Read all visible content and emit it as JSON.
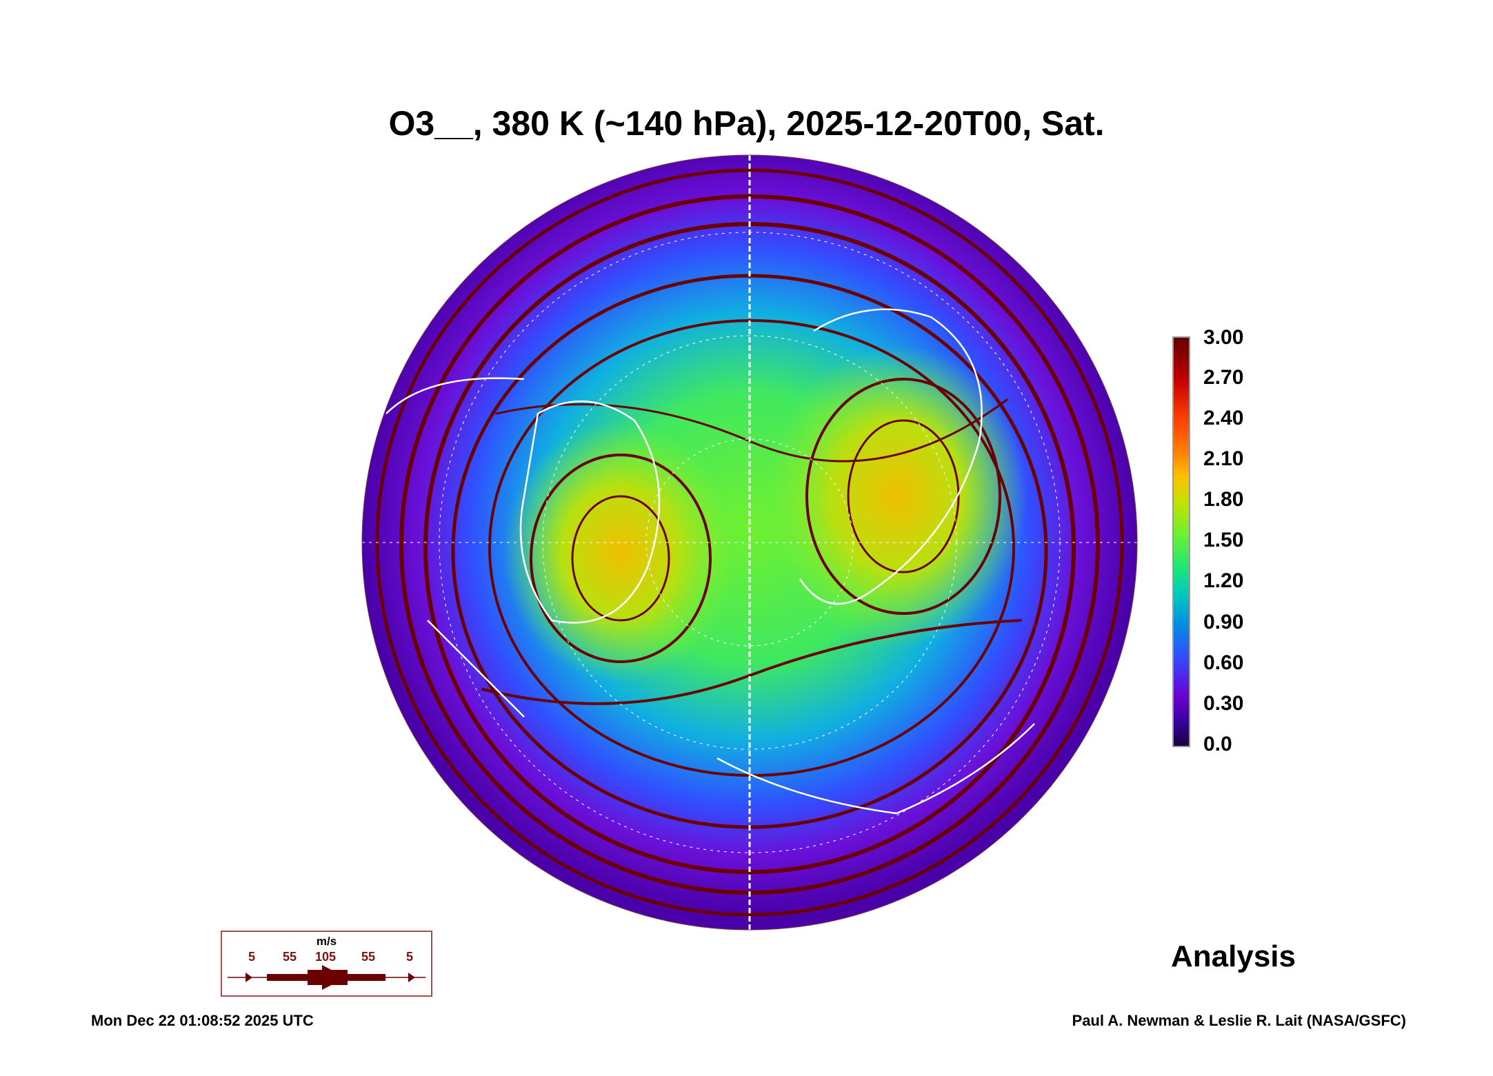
{
  "chart_data": {
    "type": "heatmap",
    "title": "O3__, 380 K (~140 hPa), 2025-12-20T00, Sat.",
    "projection": "north polar stereographic",
    "colorbar": {
      "min": 0.0,
      "max": 3.0,
      "ticks": [
        "0.0",
        "0.30",
        "0.60",
        "0.90",
        "1.20",
        "1.50",
        "1.80",
        "2.10",
        "2.40",
        "2.70",
        "3.00"
      ]
    },
    "overlay": "wind streamlines",
    "wind_legend": {
      "unit": "m/s",
      "values": [
        "5",
        "55",
        "105",
        "55",
        "5"
      ]
    },
    "label": "Analysis"
  },
  "colors": {
    "streamline": "#6b0000",
    "coast": "#ffffff"
  },
  "footer": {
    "timestamp": "Mon Dec 22 01:08:52 2025 UTC",
    "credit": "Paul A. Newman & Leslie R. Lait (NASA/GSFC)"
  }
}
